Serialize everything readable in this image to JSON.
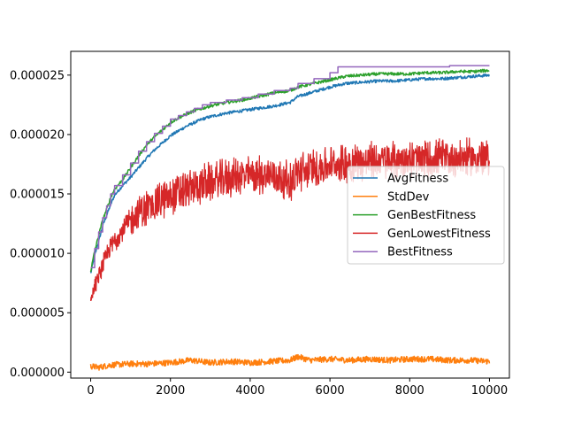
{
  "chart_data": {
    "type": "line",
    "title": "",
    "xlabel": "",
    "ylabel": "",
    "xlim": [
      -500,
      10500
    ],
    "ylim": [
      -5e-07,
      2.7e-05
    ],
    "x_ticks": [
      0,
      2000,
      4000,
      6000,
      8000,
      10000
    ],
    "x_tick_labels": [
      "0",
      "2000",
      "4000",
      "6000",
      "8000",
      "10000"
    ],
    "y_ticks": [
      0,
      5e-06,
      1e-05,
      1.5e-05,
      2e-05,
      2.5e-05
    ],
    "y_tick_labels": [
      "0.000000",
      "0.000005",
      "0.000010",
      "0.000015",
      "0.000020",
      "0.000025"
    ],
    "grid": false,
    "legend_position": "center-right",
    "series": [
      {
        "name": "AvgFitness",
        "color": "#1f77b4",
        "x": [
          0,
          100,
          200,
          300,
          400,
          500,
          600,
          800,
          1000,
          1200,
          1400,
          1600,
          1800,
          2000,
          2200,
          2400,
          2600,
          2800,
          3000,
          3400,
          3800,
          4200,
          4600,
          5000,
          5200,
          5600,
          6000,
          6400,
          6800,
          7200,
          7600,
          8000,
          8400,
          8800,
          9200,
          9600,
          10000
        ],
        "y": [
          8.3e-06,
          9.8e-06,
          1.1e-05,
          1.23e-05,
          1.32e-05,
          1.41e-05,
          1.49e-05,
          1.57e-05,
          1.64e-05,
          1.72e-05,
          1.8e-05,
          1.87e-05,
          1.93e-05,
          1.99e-05,
          2.03e-05,
          2.07e-05,
          2.1e-05,
          2.13e-05,
          2.15e-05,
          2.18e-05,
          2.2e-05,
          2.22e-05,
          2.24e-05,
          2.27e-05,
          2.32e-05,
          2.36e-05,
          2.4e-05,
          2.43e-05,
          2.44e-05,
          2.45e-05,
          2.45e-05,
          2.46e-05,
          2.47e-05,
          2.47e-05,
          2.48e-05,
          2.49e-05,
          2.5e-05
        ]
      },
      {
        "name": "StdDev",
        "color": "#ff7f0e",
        "x": [
          0,
          200,
          500,
          1000,
          1500,
          2000,
          2500,
          3000,
          3500,
          4000,
          4500,
          5000,
          5200,
          5500,
          6000,
          6500,
          7000,
          7500,
          8000,
          8500,
          9000,
          9500,
          10000
        ],
        "y": [
          5e-07,
          4e-07,
          6e-07,
          7e-07,
          7e-07,
          8e-07,
          1e-06,
          8e-07,
          9e-07,
          8e-07,
          9e-07,
          1e-06,
          1.3e-06,
          1e-06,
          1.1e-06,
          1e-06,
          1.1e-06,
          1e-06,
          1.1e-06,
          1.1e-06,
          1e-06,
          1e-06,
          9e-07
        ]
      },
      {
        "name": "GenBestFitness",
        "color": "#2ca02c",
        "x": [
          0,
          100,
          200,
          300,
          400,
          500,
          600,
          800,
          1000,
          1200,
          1400,
          1600,
          1800,
          2000,
          2200,
          2400,
          2600,
          2800,
          3000,
          3400,
          3800,
          4200,
          4600,
          5000,
          5200,
          5600,
          6000,
          6400,
          6800,
          7200,
          7600,
          8000,
          8400,
          8800,
          9200,
          9600,
          10000
        ],
        "y": [
          8.5e-06,
          1.02e-05,
          1.15e-05,
          1.28e-05,
          1.37e-05,
          1.47e-05,
          1.54e-05,
          1.62e-05,
          1.72e-05,
          1.82e-05,
          1.91e-05,
          1.98e-05,
          2.04e-05,
          2.1e-05,
          2.14e-05,
          2.17e-05,
          2.2e-05,
          2.22e-05,
          2.24e-05,
          2.27e-05,
          2.29e-05,
          2.32e-05,
          2.35e-05,
          2.37e-05,
          2.4e-05,
          2.43e-05,
          2.46e-05,
          2.49e-05,
          2.5e-05,
          2.51e-05,
          2.51e-05,
          2.51e-05,
          2.52e-05,
          2.52e-05,
          2.53e-05,
          2.53e-05,
          2.54e-05
        ]
      },
      {
        "name": "GenLowestFitness",
        "color": "#d62728",
        "x": [
          0,
          100,
          200,
          300,
          400,
          500,
          600,
          800,
          1000,
          1200,
          1400,
          1600,
          1800,
          2000,
          2200,
          2400,
          2600,
          2800,
          3000,
          3400,
          3800,
          4200,
          4600,
          5000,
          5200,
          5600,
          6000,
          6400,
          6800,
          7200,
          7600,
          8000,
          8400,
          8800,
          9200,
          9600,
          10000
        ],
        "y": [
          6e-06,
          7.2e-06,
          8e-06,
          9e-06,
          9.8e-06,
          1.05e-05,
          1.11e-05,
          1.2e-05,
          1.27e-05,
          1.34e-05,
          1.38e-05,
          1.42e-05,
          1.45e-05,
          1.48e-05,
          1.51e-05,
          1.53e-05,
          1.56e-05,
          1.58e-05,
          1.6e-05,
          1.63e-05,
          1.65e-05,
          1.66e-05,
          1.66e-05,
          1.6e-05,
          1.68e-05,
          1.72e-05,
          1.74e-05,
          1.76e-05,
          1.77e-05,
          1.78e-05,
          1.78e-05,
          1.79e-05,
          1.79e-05,
          1.8e-05,
          1.8e-05,
          1.8e-05,
          1.8e-05
        ],
        "noise_amplitude": 1.4e-06
      },
      {
        "name": "BestFitness",
        "color": "#9467bd",
        "x": [
          0,
          100,
          200,
          300,
          400,
          500,
          600,
          800,
          1000,
          1200,
          1400,
          1600,
          1800,
          2000,
          2200,
          2400,
          2600,
          2800,
          3000,
          3400,
          3800,
          4200,
          4600,
          5000,
          5200,
          5600,
          6000,
          6200,
          6400,
          7000,
          8000,
          9000,
          10000
        ],
        "y": [
          8.8e-06,
          1.04e-05,
          1.18e-05,
          1.3e-05,
          1.4e-05,
          1.5e-05,
          1.57e-05,
          1.66e-05,
          1.76e-05,
          1.86e-05,
          1.94e-05,
          2.01e-05,
          2.07e-05,
          2.13e-05,
          2.16e-05,
          2.19e-05,
          2.22e-05,
          2.25e-05,
          2.27e-05,
          2.29e-05,
          2.31e-05,
          2.34e-05,
          2.37e-05,
          2.39e-05,
          2.43e-05,
          2.47e-05,
          2.52e-05,
          2.57e-05,
          2.57e-05,
          2.57e-05,
          2.57e-05,
          2.58e-05,
          2.58e-05
        ]
      }
    ]
  }
}
